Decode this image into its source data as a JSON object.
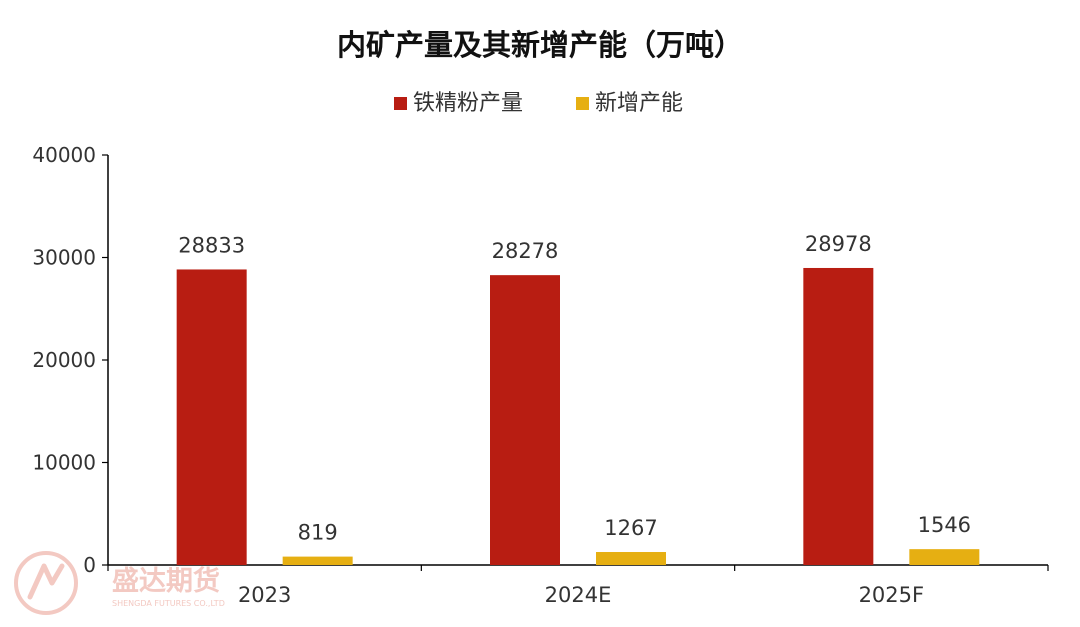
{
  "chart_data": {
    "type": "bar",
    "title": "内矿产量及其新增产能（万吨）",
    "categories": [
      "2023",
      "2024E",
      "2025F"
    ],
    "series": [
      {
        "name": "铁精粉产量",
        "values": [
          28833,
          28278,
          28978
        ],
        "color": "#B81D12"
      },
      {
        "name": "新增产能",
        "values": [
          819,
          1267,
          1546
        ],
        "color": "#E6AF12"
      }
    ],
    "yticks": [
      "0",
      "10000",
      "20000",
      "30000",
      "40000"
    ],
    "ylim": [
      0,
      40000
    ],
    "grid": false,
    "legend": "top-center"
  },
  "watermark": {
    "text": "盛达期货",
    "subtext": "SHENGDA FUTURES CO.,LTD",
    "icon": "shengda-logo-icon",
    "color": "#F3C9C2"
  }
}
